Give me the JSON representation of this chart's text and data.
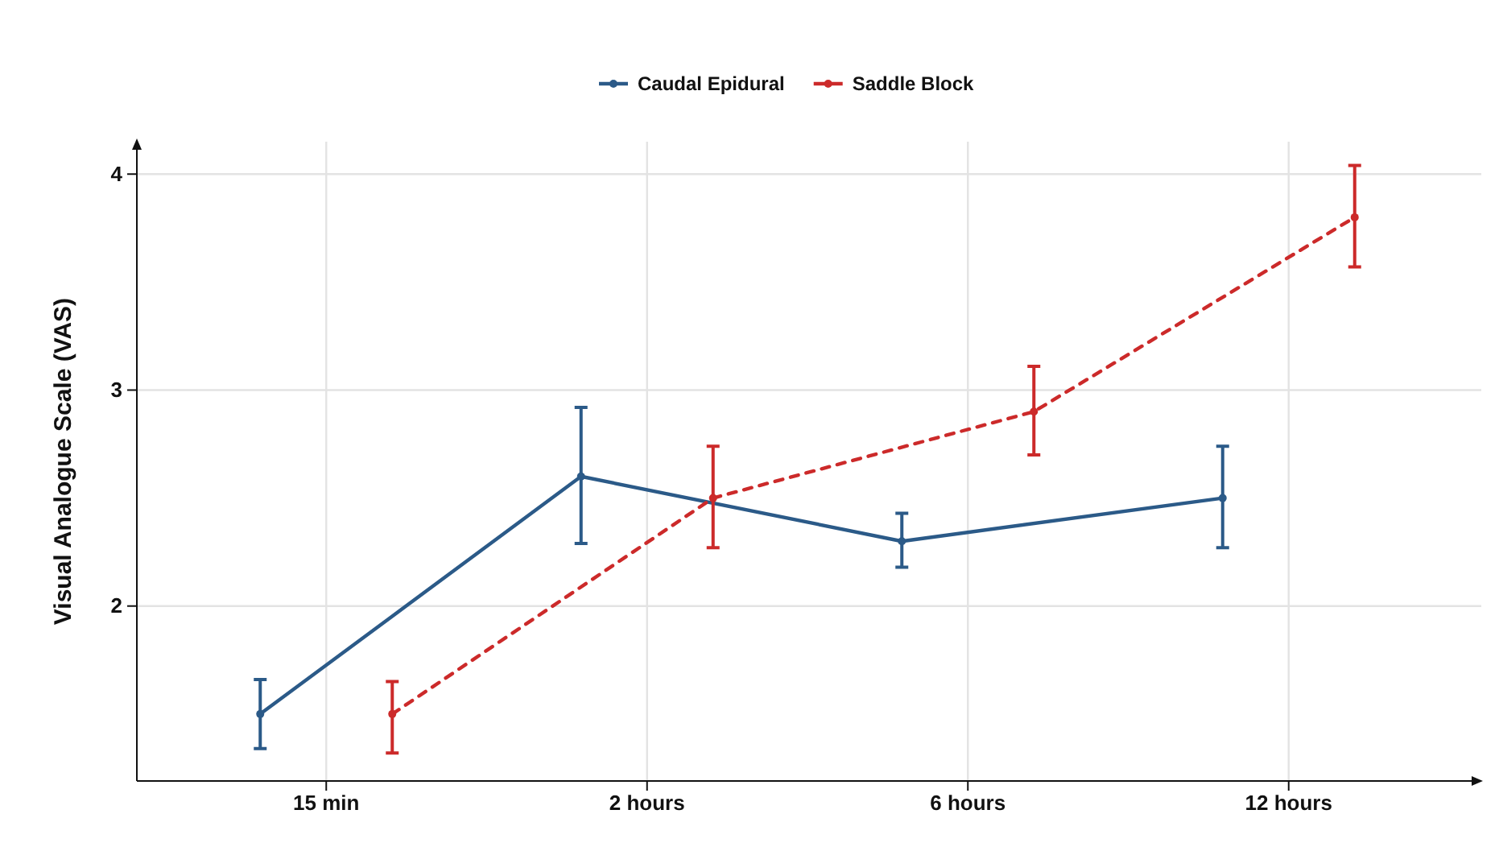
{
  "chart_data": {
    "type": "line",
    "ylabel": "Visual Analogue Scale (VAS)",
    "categories": [
      "15 min",
      "2 hours",
      "6 hours",
      "12 hours"
    ],
    "ylim": [
      1.19,
      4.15
    ],
    "yticks": [
      2,
      3,
      4
    ],
    "grid": true,
    "legend": "top",
    "marker": "circle",
    "series": [
      {
        "name": "Caudal Epidural",
        "color": "#2b5a88",
        "line_style": "solid",
        "values": [
          1.5,
          2.6,
          2.3,
          2.5
        ],
        "errors": [
          [
            1.34,
            1.66
          ],
          [
            2.29,
            2.92
          ],
          [
            2.18,
            2.43
          ],
          [
            2.27,
            2.74
          ]
        ]
      },
      {
        "name": "Saddle Block",
        "color": "#cc2a2a",
        "line_style": "dashed",
        "values": [
          1.5,
          2.5,
          2.9,
          3.8
        ],
        "errors": [
          [
            1.32,
            1.65
          ],
          [
            2.27,
            2.74
          ],
          [
            2.7,
            3.11
          ],
          [
            3.57,
            4.04
          ]
        ]
      }
    ]
  }
}
